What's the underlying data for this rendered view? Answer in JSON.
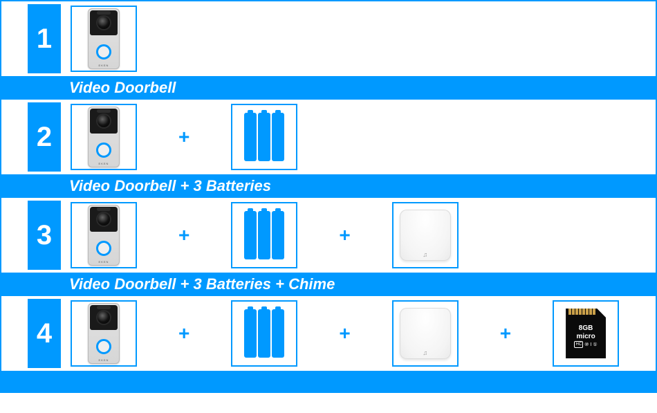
{
  "colors": {
    "brand": "#0099ff",
    "white": "#ffffff"
  },
  "bundles": [
    {
      "number": "1",
      "label": "Video Doorbell",
      "items": [
        "doorbell"
      ]
    },
    {
      "number": "2",
      "label": "Video Doorbell + 3 Batteries",
      "items": [
        "doorbell",
        "batteries"
      ]
    },
    {
      "number": "3",
      "label": "Video Doorbell + 3 Batteries + Chime",
      "items": [
        "doorbell",
        "batteries",
        "chime"
      ]
    },
    {
      "number": "4",
      "label": "",
      "items": [
        "doorbell",
        "batteries",
        "chime",
        "sdcard"
      ]
    }
  ],
  "plus_symbol": "+",
  "sdcard": {
    "capacity": "8GB",
    "line2": "micro",
    "hc": "HC",
    "class": "⑩",
    "uhs": "I",
    "u": "①"
  }
}
